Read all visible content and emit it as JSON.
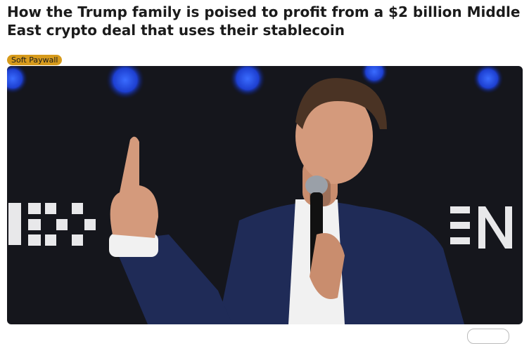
{
  "header": {
    "title": "How the Trump family is poised to profit from a $2 billion Middle East crypto deal that uses their stablecoin",
    "badge": "Soft Paywall"
  }
}
